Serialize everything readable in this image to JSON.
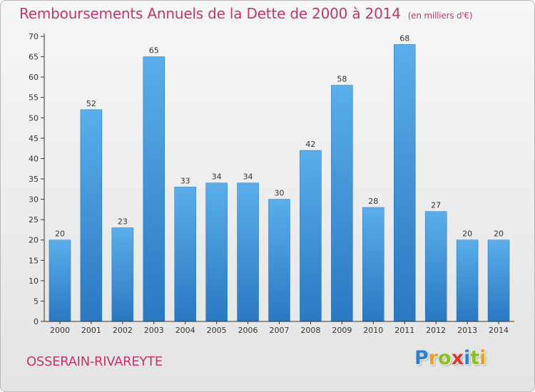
{
  "chart_data": {
    "type": "bar",
    "title": "Remboursements Annuels de la Dette de 2000 à 2014",
    "unit_label": "(en milliers d'€)",
    "categories": [
      "2000",
      "2001",
      "2002",
      "2003",
      "2004",
      "2005",
      "2006",
      "2007",
      "2008",
      "2009",
      "2010",
      "2011",
      "2012",
      "2013",
      "2014"
    ],
    "values": [
      20,
      52,
      23,
      65,
      33,
      34,
      34,
      30,
      42,
      58,
      28,
      68,
      27,
      20,
      20
    ],
    "ylim": [
      0,
      70
    ],
    "yticks": [
      0,
      5,
      10,
      15,
      20,
      25,
      30,
      35,
      40,
      45,
      50,
      55,
      60,
      65,
      70
    ],
    "grid": false,
    "data_labels": true,
    "bar_color": "#4a9ee0"
  },
  "footer": {
    "commune": "OSSERAIN-RIVAREYTE",
    "logo_letters": [
      "P",
      "r",
      "o",
      "x",
      "i",
      "t",
      "i"
    ],
    "logo_colors": [
      "#2f7fd0",
      "#e8a020",
      "#8cbf2a",
      "#d83a3a",
      "#2f7fd0",
      "#8cbf2a",
      "#e8a020"
    ]
  },
  "colors": {
    "title": "#c4356e",
    "axis": "#333333"
  }
}
